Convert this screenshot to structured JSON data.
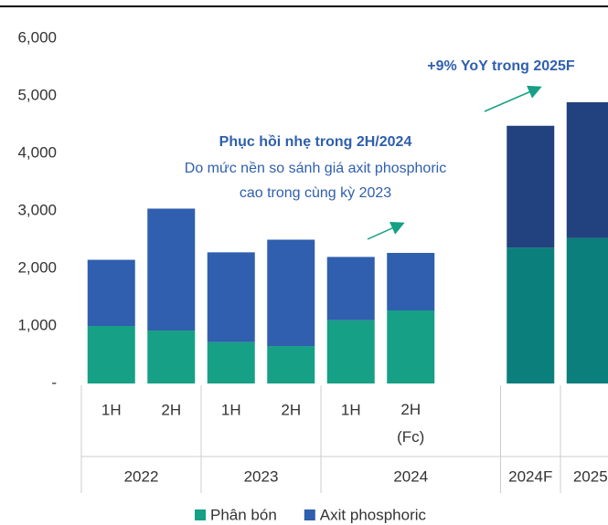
{
  "chart_data": {
    "type": "stacked_bar",
    "categories": [
      "1H",
      "2H",
      "1H",
      "2H",
      "1H",
      "2H (Fc)",
      null,
      null
    ],
    "category_groups": [
      "2022",
      "2022",
      "2023",
      "2023",
      "2024",
      "2024",
      "2024F",
      "2025"
    ],
    "series": [
      {
        "name": "Phân bón",
        "color": "#16a085",
        "colors": [
          "#16a085",
          "#16a085",
          "#16a085",
          "#16a085",
          "#16a085",
          "#16a085",
          "#0b7f7c",
          "#0b7f7c"
        ],
        "values": [
          1000,
          920,
          720,
          650,
          1100,
          1270,
          2360,
          2530
        ]
      },
      {
        "name": "Axit phosphoric",
        "color": "#2f5fae",
        "colors": [
          "#2f5fae",
          "#2f5fae",
          "#2f5fae",
          "#2f5fae",
          "#2f5fae",
          "#2f5fae",
          "#22427f",
          "#22427f"
        ],
        "values": [
          1150,
          2120,
          1560,
          1850,
          1100,
          1000,
          2120,
          2360
        ]
      }
    ],
    "ylim": [
      0,
      6000
    ],
    "yticks": [
      {
        "value": 0,
        "label": "-"
      },
      {
        "value": 1000,
        "label": "1,000"
      },
      {
        "value": 2000,
        "label": "2,000"
      },
      {
        "value": 3000,
        "label": "3,000"
      },
      {
        "value": 4000,
        "label": "4,000"
      },
      {
        "value": 5000,
        "label": "5,000"
      },
      {
        "value": 6000,
        "label": "6,000"
      }
    ],
    "annotations": [
      "+9% YoY trong 2025F",
      "Phục hồi nhẹ trong 2H/2024",
      "Do mức nền so sánh giá axit phosphoric",
      "cao trong cùng kỳ 2023"
    ],
    "legend": "bottom"
  }
}
